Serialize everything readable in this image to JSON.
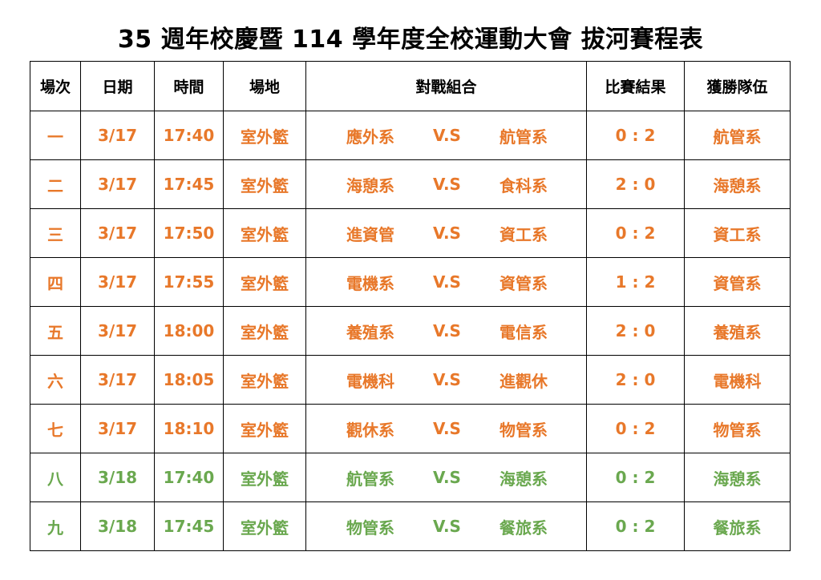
{
  "title": "35 週年校慶暨 114 學年度全校運動大會  拔河賽程表",
  "headers": {
    "round": "場次",
    "date": "日期",
    "time": "時間",
    "venue": "場地",
    "matchup": "對戰組合",
    "result": "比賽結果",
    "winner": "獲勝隊伍"
  },
  "colors": {
    "day1_text": "#e8782a",
    "day2_text": "#6aa84f",
    "header_text": "#000000"
  },
  "rows": [
    {
      "round": "一",
      "date": "3/17",
      "time": "17:40",
      "venue": "室外籃",
      "team_a": "應外系",
      "vs": "V.S",
      "team_b": "航管系",
      "result": "0 : 2",
      "winner": "航管系"
    },
    {
      "round": "二",
      "date": "3/17",
      "time": "17:45",
      "venue": "室外籃",
      "team_a": "海憩系",
      "vs": "V.S",
      "team_b": "食科系",
      "result": "2 : 0",
      "winner": "海憩系"
    },
    {
      "round": "三",
      "date": "3/17",
      "time": "17:50",
      "venue": "室外籃",
      "team_a": "進資管",
      "vs": "V.S",
      "team_b": "資工系",
      "result": "0 : 2",
      "winner": "資工系"
    },
    {
      "round": "四",
      "date": "3/17",
      "time": "17:55",
      "venue": "室外籃",
      "team_a": "電機系",
      "vs": "V.S",
      "team_b": "資管系",
      "result": "1 : 2",
      "winner": "資管系"
    },
    {
      "round": "五",
      "date": "3/17",
      "time": "18:00",
      "venue": "室外籃",
      "team_a": "養殖系",
      "vs": "V.S",
      "team_b": "電信系",
      "result": "2 : 0",
      "winner": "養殖系"
    },
    {
      "round": "六",
      "date": "3/17",
      "time": "18:05",
      "venue": "室外籃",
      "team_a": "電機科",
      "vs": "V.S",
      "team_b": "進觀休",
      "result": "2 : 0",
      "winner": "電機科"
    },
    {
      "round": "七",
      "date": "3/17",
      "time": "18:10",
      "venue": "室外籃",
      "team_a": "觀休系",
      "vs": "V.S",
      "team_b": "物管系",
      "result": "0 : 2",
      "winner": "物管系"
    },
    {
      "round": "八",
      "date": "3/18",
      "time": "17:40",
      "venue": "室外籃",
      "team_a": "航管系",
      "vs": "V.S",
      "team_b": "海憩系",
      "result": "0 : 2",
      "winner": "海憩系"
    },
    {
      "round": "九",
      "date": "3/18",
      "time": "17:45",
      "venue": "室外籃",
      "team_a": "物管系",
      "vs": "V.S",
      "team_b": "餐旅系",
      "result": "0 : 2",
      "winner": "餐旅系"
    }
  ]
}
